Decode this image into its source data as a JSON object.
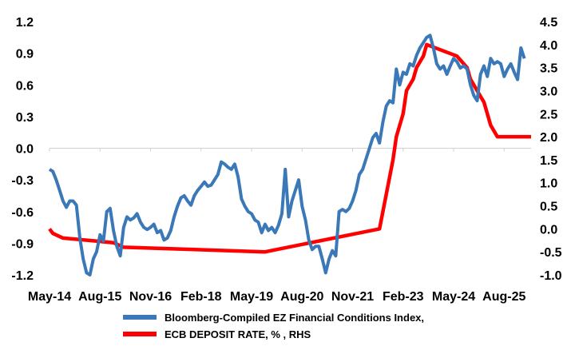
{
  "chart_data": {
    "type": "line",
    "colors": {
      "fci": "#3a78b7",
      "ecb": "#ff0000"
    },
    "grid": false,
    "legend_position": "bottom",
    "x_tick_labels": [
      "May-14",
      "Aug-15",
      "Nov-16",
      "Feb-18",
      "May-19",
      "Aug-20",
      "Nov-21",
      "Feb-23",
      "May-24",
      "Aug-25"
    ],
    "x_range": [
      "2014-05",
      "2026-04"
    ],
    "y_left": {
      "ticks": [
        "1.2",
        "0.9",
        "0.6",
        "0.3",
        "0.0",
        "-0.3",
        "-0.6",
        "-0.9",
        "-1.2"
      ],
      "ylim": [
        -1.2,
        1.2
      ]
    },
    "y_right": {
      "ticks": [
        "4.5",
        "4.0",
        "3.5",
        "3.0",
        "2.5",
        "2.0",
        "1.5",
        "1.0",
        "0.5",
        "0.0",
        "-0.5",
        "-1.0"
      ],
      "ylim": [
        -1.0,
        4.5
      ]
    },
    "series": [
      {
        "name": "Bloomberg-Compiled EZ Financial Conditions Index,",
        "axis": "left",
        "points": [
          [
            "2014-05",
            -0.2
          ],
          [
            "2014-06",
            -0.22
          ],
          [
            "2014-07",
            -0.3
          ],
          [
            "2014-08",
            -0.4
          ],
          [
            "2014-09",
            -0.5
          ],
          [
            "2014-10",
            -0.56
          ],
          [
            "2014-11",
            -0.5
          ],
          [
            "2014-12",
            -0.5
          ],
          [
            "2015-01",
            -0.54
          ],
          [
            "2015-02",
            -0.85
          ],
          [
            "2015-03",
            -1.05
          ],
          [
            "2015-04",
            -1.18
          ],
          [
            "2015-05",
            -1.2
          ],
          [
            "2015-06",
            -1.05
          ],
          [
            "2015-07",
            -0.98
          ],
          [
            "2015-08",
            -0.82
          ],
          [
            "2015-09",
            -0.88
          ],
          [
            "2015-10",
            -0.6
          ],
          [
            "2015-11",
            -0.57
          ],
          [
            "2015-12",
            -0.78
          ],
          [
            "2016-01",
            -0.93
          ],
          [
            "2016-02",
            -1.02
          ],
          [
            "2016-03",
            -0.75
          ],
          [
            "2016-04",
            -0.65
          ],
          [
            "2016-05",
            -0.68
          ],
          [
            "2016-06",
            -0.66
          ],
          [
            "2016-07",
            -0.62
          ],
          [
            "2016-08",
            -0.7
          ],
          [
            "2016-09",
            -0.75
          ],
          [
            "2016-10",
            -0.77
          ],
          [
            "2016-11",
            -0.75
          ],
          [
            "2016-12",
            -0.72
          ],
          [
            "2017-01",
            -0.8
          ],
          [
            "2017-02",
            -0.78
          ],
          [
            "2017-03",
            -0.87
          ],
          [
            "2017-04",
            -0.85
          ],
          [
            "2017-05",
            -0.78
          ],
          [
            "2017-06",
            -0.65
          ],
          [
            "2017-07",
            -0.55
          ],
          [
            "2017-08",
            -0.47
          ],
          [
            "2017-09",
            -0.45
          ],
          [
            "2017-10",
            -0.5
          ],
          [
            "2017-11",
            -0.54
          ],
          [
            "2017-12",
            -0.45
          ],
          [
            "2018-01",
            -0.4
          ],
          [
            "2018-02",
            -0.36
          ],
          [
            "2018-03",
            -0.32
          ],
          [
            "2018-04",
            -0.36
          ],
          [
            "2018-05",
            -0.35
          ],
          [
            "2018-06",
            -0.3
          ],
          [
            "2018-07",
            -0.25
          ],
          [
            "2018-08",
            -0.13
          ],
          [
            "2018-09",
            -0.15
          ],
          [
            "2018-10",
            -0.18
          ],
          [
            "2018-11",
            -0.2
          ],
          [
            "2018-12",
            -0.15
          ],
          [
            "2019-01",
            -0.27
          ],
          [
            "2019-02",
            -0.48
          ],
          [
            "2019-03",
            -0.55
          ],
          [
            "2019-04",
            -0.6
          ],
          [
            "2019-05",
            -0.62
          ],
          [
            "2019-06",
            -0.68
          ],
          [
            "2019-07",
            -0.7
          ],
          [
            "2019-08",
            -0.8
          ],
          [
            "2019-09",
            -0.72
          ],
          [
            "2019-10",
            -0.78
          ],
          [
            "2019-11",
            -0.75
          ],
          [
            "2019-12",
            -0.8
          ],
          [
            "2020-01",
            -0.73
          ],
          [
            "2020-02",
            -0.62
          ],
          [
            "2020-03",
            -0.2
          ],
          [
            "2020-04",
            -0.65
          ],
          [
            "2020-05",
            -0.5
          ],
          [
            "2020-06",
            -0.4
          ],
          [
            "2020-07",
            -0.3
          ],
          [
            "2020-08",
            -0.55
          ],
          [
            "2020-09",
            -0.68
          ],
          [
            "2020-10",
            -0.87
          ],
          [
            "2020-11",
            -0.96
          ],
          [
            "2020-12",
            -0.93
          ],
          [
            "2021-01",
            -0.93
          ],
          [
            "2021-02",
            -1.05
          ],
          [
            "2021-03",
            -1.18
          ],
          [
            "2021-04",
            -1.05
          ],
          [
            "2021-05",
            -0.97
          ],
          [
            "2021-06",
            -1.02
          ],
          [
            "2021-07",
            -0.6
          ],
          [
            "2021-08",
            -0.58
          ],
          [
            "2021-09",
            -0.6
          ],
          [
            "2021-10",
            -0.57
          ],
          [
            "2021-11",
            -0.5
          ],
          [
            "2021-12",
            -0.4
          ],
          [
            "2022-01",
            -0.25
          ],
          [
            "2022-02",
            -0.2
          ],
          [
            "2022-03",
            -0.1
          ],
          [
            "2022-04",
            0.0
          ],
          [
            "2022-05",
            0.1
          ],
          [
            "2022-06",
            0.14
          ],
          [
            "2022-07",
            0.05
          ],
          [
            "2022-08",
            0.25
          ],
          [
            "2022-09",
            0.4
          ],
          [
            "2022-10",
            0.45
          ],
          [
            "2022-11",
            0.43
          ],
          [
            "2022-12",
            0.75
          ],
          [
            "2023-01",
            0.6
          ],
          [
            "2023-02",
            0.72
          ],
          [
            "2023-03",
            0.7
          ],
          [
            "2023-04",
            0.8
          ],
          [
            "2023-05",
            0.78
          ],
          [
            "2023-06",
            0.88
          ],
          [
            "2023-07",
            0.95
          ],
          [
            "2023-08",
            1.0
          ],
          [
            "2023-09",
            1.05
          ],
          [
            "2023-10",
            1.07
          ],
          [
            "2023-11",
            0.95
          ],
          [
            "2023-12",
            0.8
          ],
          [
            "2024-01",
            0.75
          ],
          [
            "2024-02",
            0.78
          ],
          [
            "2024-03",
            0.7
          ],
          [
            "2024-04",
            0.78
          ],
          [
            "2024-05",
            0.85
          ],
          [
            "2024-06",
            0.82
          ],
          [
            "2024-07",
            0.76
          ],
          [
            "2024-08",
            0.78
          ],
          [
            "2024-09",
            0.75
          ],
          [
            "2024-10",
            0.6
          ],
          [
            "2024-11",
            0.5
          ],
          [
            "2024-12",
            0.45
          ],
          [
            "2025-01",
            0.7
          ],
          [
            "2025-02",
            0.78
          ],
          [
            "2025-03",
            0.68
          ],
          [
            "2025-04",
            0.85
          ],
          [
            "2025-05",
            0.8
          ],
          [
            "2025-06",
            0.82
          ],
          [
            "2025-07",
            0.8
          ],
          [
            "2025-08",
            0.68
          ],
          [
            "2025-09",
            0.75
          ],
          [
            "2025-10",
            0.8
          ],
          [
            "2025-11",
            0.72
          ],
          [
            "2025-12",
            0.65
          ],
          [
            "2026-01",
            0.95
          ],
          [
            "2026-02",
            0.85
          ]
        ]
      },
      {
        "name": "ECB DEPOSIT RATE, % , RHS",
        "axis": "right",
        "points": [
          [
            "2014-05",
            0.0
          ],
          [
            "2014-06",
            -0.1
          ],
          [
            "2014-09",
            -0.2
          ],
          [
            "2015-12",
            -0.3
          ],
          [
            "2016-03",
            -0.4
          ],
          [
            "2019-09",
            -0.5
          ],
          [
            "2022-07",
            0.0
          ],
          [
            "2022-09",
            0.75
          ],
          [
            "2022-11",
            1.5
          ],
          [
            "2022-12",
            2.0
          ],
          [
            "2023-02",
            2.5
          ],
          [
            "2023-03",
            3.0
          ],
          [
            "2023-05",
            3.25
          ],
          [
            "2023-06",
            3.5
          ],
          [
            "2023-08",
            3.75
          ],
          [
            "2023-09",
            4.0
          ],
          [
            "2024-06",
            3.75
          ],
          [
            "2024-09",
            3.5
          ],
          [
            "2024-10",
            3.25
          ],
          [
            "2024-12",
            3.0
          ],
          [
            "2025-02",
            2.75
          ],
          [
            "2025-03",
            2.5
          ],
          [
            "2025-04",
            2.25
          ],
          [
            "2025-06",
            2.0
          ],
          [
            "2026-04",
            2.0
          ]
        ]
      }
    ]
  }
}
